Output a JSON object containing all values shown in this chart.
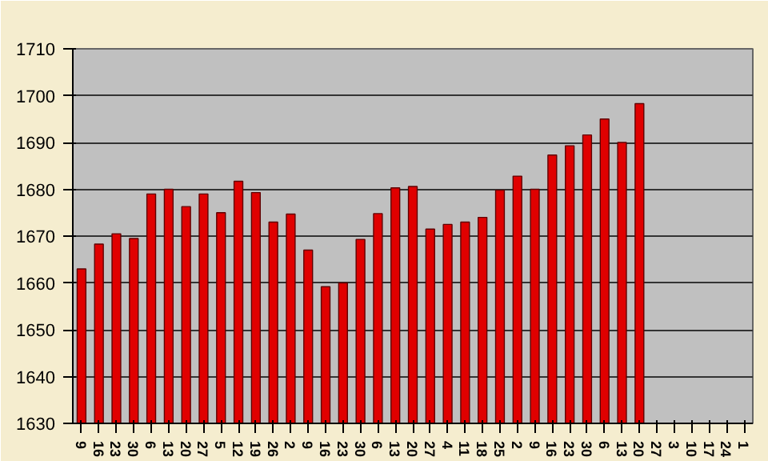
{
  "chart_data": {
    "type": "bar",
    "categories": [
      "9",
      "16",
      "23",
      "30",
      "6",
      "13",
      "20",
      "27",
      "5",
      "12",
      "19",
      "26",
      "2",
      "9",
      "16",
      "23",
      "30",
      "6",
      "13",
      "20",
      "27",
      "4",
      "11",
      "18",
      "25",
      "2",
      "9",
      "16",
      "23",
      "30",
      "6",
      "13",
      "20",
      "27",
      "3",
      "10",
      "17",
      "24",
      "1"
    ],
    "values": [
      1663,
      1668.3,
      1670.5,
      1669.5,
      1679,
      1680,
      1676.3,
      1679,
      1675,
      1681.7,
      1679.3,
      1673,
      1674.7,
      1667,
      1659.2,
      1660,
      1669.3,
      1674.8,
      1680.3,
      1680.6,
      1671.5,
      1672.5,
      1673,
      1674,
      1679.8,
      1682.8,
      1680,
      1687.3,
      1689.3,
      1691.6,
      1695,
      1690,
      1698.3,
      null,
      null,
      null,
      null,
      null,
      null
    ],
    "color": "#e00000",
    "ylim": [
      1630,
      1710
    ],
    "yticks": [
      1630,
      1640,
      1650,
      1660,
      1670,
      1680,
      1690,
      1700,
      1710
    ],
    "grid": "y"
  }
}
